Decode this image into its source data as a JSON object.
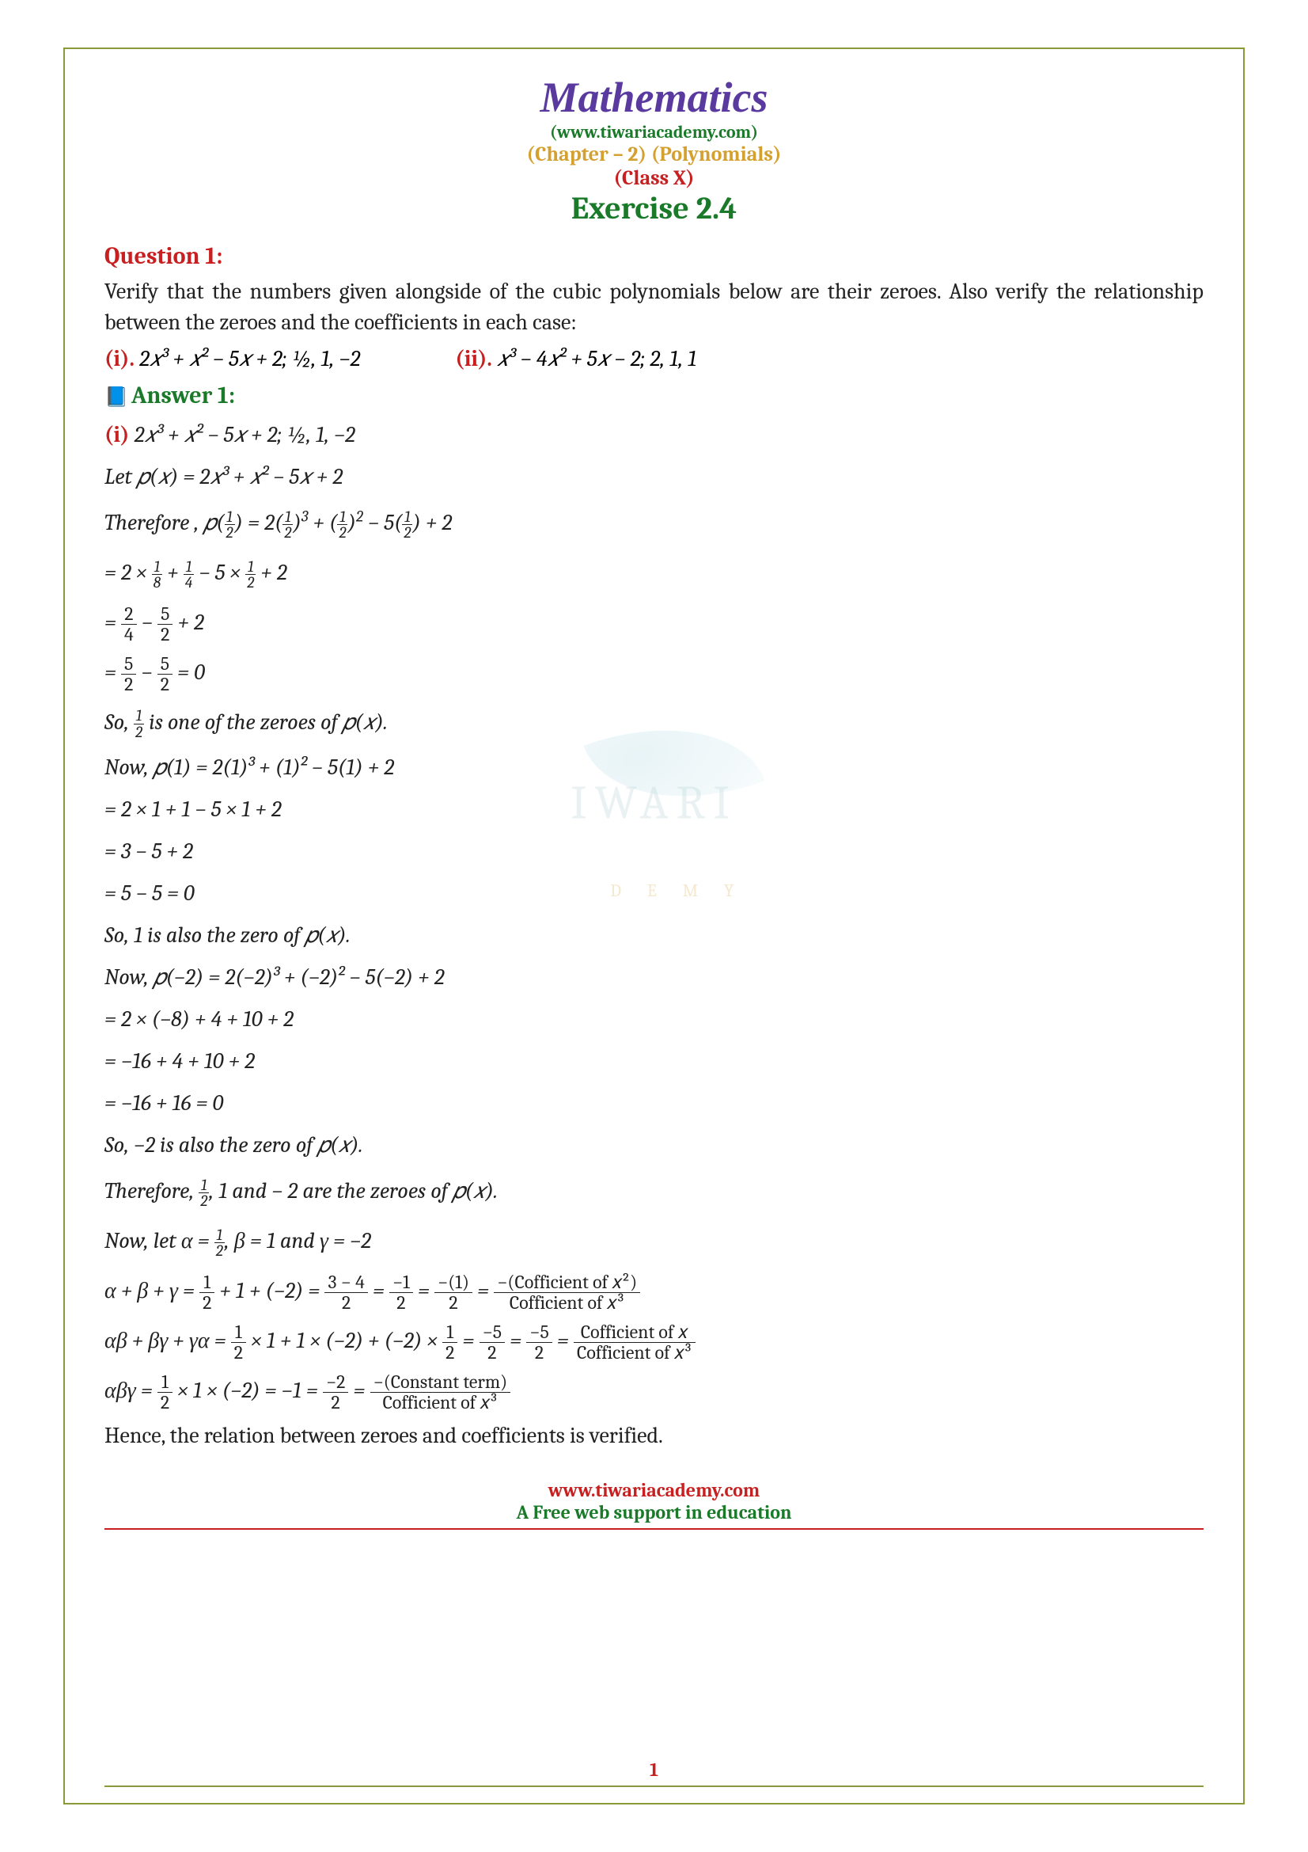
{
  "header": {
    "title": "Mathematics",
    "url_paren_open": "(",
    "url": "www.tiwariacademy.com",
    "url_paren_close": ")",
    "chapter": "(Chapter – 2) (Polynomials)",
    "class": "(Class X)",
    "exercise": "Exercise 2.4"
  },
  "question": {
    "label": "Question 1:",
    "text": "Verify that the numbers given alongside of the cubic polynomials below are their zeroes. Also verify the relationship between the zeroes and the coefficients in each case:",
    "part_i_label": "(i).",
    "part_i_math": " 2𝑥³ + 𝑥² − 5𝑥 + 2;   ½, 1, −2",
    "part_ii_label": "(ii).",
    "part_ii_math": " 𝑥³ − 4𝑥² + 5𝑥 − 2;    2, 1, 1"
  },
  "answer": {
    "label": "Answer 1:"
  },
  "lines": {
    "l1a": "(i)",
    "l1b": " 2𝑥³ + 𝑥² − 5𝑥 + 2;   ½, 1, −2",
    "l2": "Let  𝑝(𝑥) = 2𝑥³ + 𝑥² − 5𝑥 + 2",
    "l3pre": "Therefore ,  𝑝",
    "l5": "= 2 × 1 + 1 − 5 × 1 + 2",
    "l6": "= 3 − 5 + 2",
    "l7": "= 5 − 5 = 0",
    "s1": "So, ½  is one of the zeroes of  𝑝(𝑥).",
    "n1": "Now, 𝑝(1) = 2(1)³ + (1)² − 5(1) + 2",
    "s2": "So, 1 is also the zero of  𝑝(𝑥).",
    "n2": "Now, 𝑝(−2) = 2(−2)³ + (−2)² − 5(−2) + 2",
    "n2a": "= 2 × (−8) + 4 + 10 + 2",
    "n2b": "= −16 + 4 + 10 + 2",
    "n2c": "= −16 + 16 = 0",
    "s3": "So, −2 is also the zero of  𝑝(𝑥).",
    "th": "Therefore, ½, 1 and − 2 are the zeroes of  𝑝(𝑥).",
    "nl": "Now, let α = ½, β = 1 and γ = −2",
    "r_final": "Hence, the relation between zeroes and coefficients is verified."
  },
  "footer": {
    "url": "www.tiwariacademy.com",
    "tag": "A Free web support in education",
    "page": "1"
  },
  "watermark": {
    "main": "IWARI",
    "sub": "D  E  M  Y"
  },
  "colors": {
    "border": "#8a9a3a",
    "title": "#5a3a9e",
    "green": "#1a7a2a",
    "yellow": "#d4a030",
    "red": "#c82020",
    "text": "#222222"
  }
}
